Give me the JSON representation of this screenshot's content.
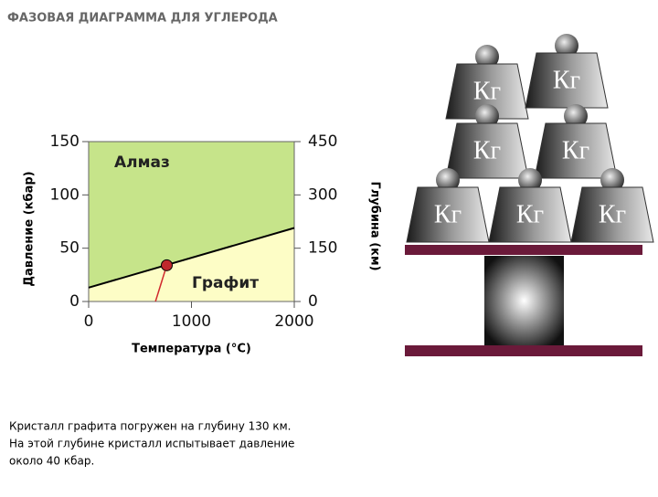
{
  "header": {
    "title": "ФАЗОВАЯ ДИАГРАММА ДЛЯ УГЛЕРОДА"
  },
  "chart_data": {
    "type": "phase",
    "xlabel": "Температура (°C)",
    "ylabel": "Давление (кбар)",
    "y2label": "Глубина (км)",
    "xlim": [
      0,
      2000
    ],
    "ylim": [
      0,
      150
    ],
    "y2lim": [
      0,
      450
    ],
    "xticks": [
      0,
      1000,
      2000
    ],
    "yticks": [
      0,
      50,
      100,
      150
    ],
    "y2ticks": [
      0,
      150,
      300,
      450
    ],
    "regions": [
      {
        "label": "Алмаз",
        "color": "#c6e48a"
      },
      {
        "label": "Графит",
        "color": "#fdfdc6"
      }
    ],
    "boundary": {
      "x": [
        0,
        2000
      ],
      "y": [
        13,
        69
      ],
      "color": "#000000"
    },
    "pointer": {
      "x": [
        650,
        760
      ],
      "y": [
        0,
        34
      ],
      "color": "#d0282d"
    },
    "point": {
      "x": 760,
      "y": 34,
      "color": "#c0282d"
    }
  },
  "caption": [
    "Кристалл графита погружен на глубину 130 км.",
    "На этой глубине кристалл испытывает давление",
    "около 40 кбар."
  ],
  "weights": [
    "Кг",
    "Кг",
    "Кг",
    "Кг",
    "Кг",
    "Кг",
    "Кг"
  ]
}
